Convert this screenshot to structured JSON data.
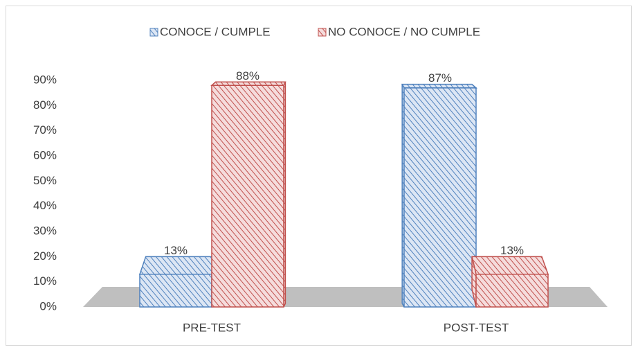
{
  "chart_data": {
    "type": "bar3d",
    "categories": [
      "PRE-TEST",
      "POST-TEST"
    ],
    "series": [
      {
        "name": "CONOCE / CUMPLE",
        "color": "#4f81bd",
        "values": [
          13,
          87
        ],
        "value_labels": [
          "13%",
          "87%"
        ]
      },
      {
        "name": "NO CONOCE / NO CUMPLE",
        "color": "#c0504d",
        "values": [
          88,
          13
        ],
        "value_labels": [
          "88%",
          "13%"
        ]
      }
    ],
    "ylim": [
      0,
      90
    ],
    "yticks": [
      {
        "value": 0,
        "label": "0%"
      },
      {
        "value": 10,
        "label": "10%"
      },
      {
        "value": 20,
        "label": "20%"
      },
      {
        "value": 30,
        "label": "30%"
      },
      {
        "value": 40,
        "label": "40%"
      },
      {
        "value": 50,
        "label": "50%"
      },
      {
        "value": 60,
        "label": "60%"
      },
      {
        "value": 70,
        "label": "70%"
      },
      {
        "value": 80,
        "label": "80%"
      },
      {
        "value": 90,
        "label": "90%"
      }
    ],
    "legend": "top"
  }
}
